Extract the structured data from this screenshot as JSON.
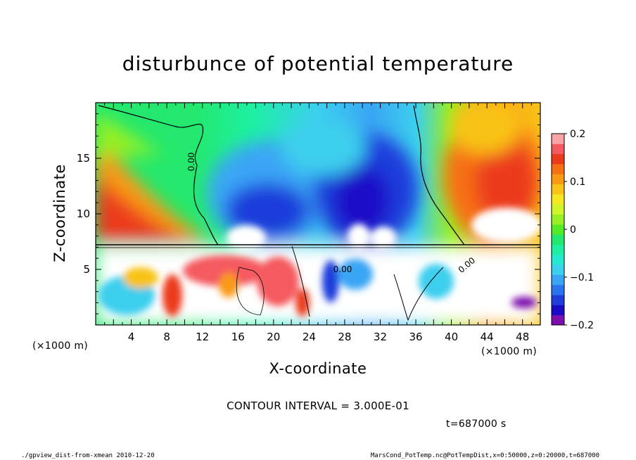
{
  "chart_data": {
    "type": "heatmap",
    "title": "disturbunce of potential temperature",
    "xlabel": "X-coordinate",
    "ylabel": "Z-coordinate",
    "x_unit_left": "(×1000 m)",
    "x_unit_right": "(×1000 m)",
    "xlim": [
      0,
      50
    ],
    "ylim": [
      0,
      20
    ],
    "x_ticks": [
      4,
      8,
      12,
      16,
      20,
      24,
      28,
      32,
      36,
      40,
      44,
      48
    ],
    "y_ticks": [
      5,
      10,
      15
    ],
    "colorbar": {
      "range": [
        -0.2,
        0.2
      ],
      "tick_values": [
        -0.2,
        -0.1,
        0,
        0.1,
        0.2
      ],
      "tick_labels": [
        "−0.2",
        "−0.1",
        "0",
        "0.1",
        "0.2"
      ],
      "colors": [
        "#7d0dad",
        "#1b09c8",
        "#1e3ddb",
        "#2a75ee",
        "#3aa5f5",
        "#3ccfee",
        "#24ead0",
        "#1df0a2",
        "#24e86d",
        "#55ea26",
        "#96f023",
        "#cdf52a",
        "#f5e823",
        "#f9c318",
        "#f99a12",
        "#f76f14",
        "#ec3a1c",
        "#f45a5e",
        "#f8a3a6"
      ]
    },
    "contour_label": "0.00",
    "contour_interval_text": "CONTOUR INTERVAL = 3.000E-01",
    "time_text": "t=687000 s"
  },
  "footer": {
    "left": "./gpview_dist-from-xmean  2010-12-20",
    "right": "MarsCond_PotTemp.nc@PotTempDist,x=0:50000,z=0:20000,t=687000"
  }
}
